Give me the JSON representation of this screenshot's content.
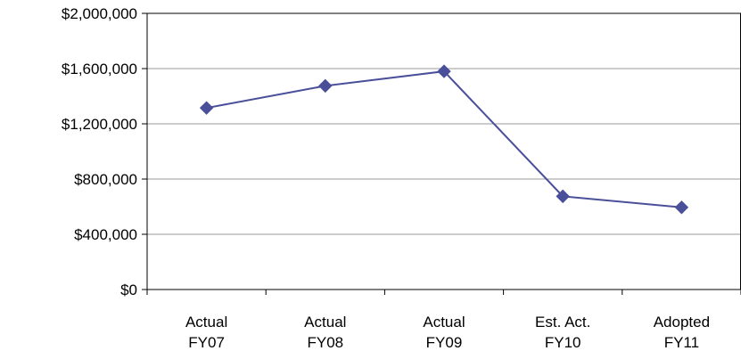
{
  "colors": {
    "series": "#4a4f9a",
    "grid": "#9a9a9a",
    "axis": "#000000",
    "text": "#000000"
  },
  "chart_data": {
    "type": "line",
    "title": "",
    "categories": [
      [
        "Actual",
        "FY07"
      ],
      [
        "Actual",
        "FY08"
      ],
      [
        "Actual",
        "FY09"
      ],
      [
        "Est. Act.",
        "FY10"
      ],
      [
        "Adopted",
        "FY11"
      ]
    ],
    "series": [
      {
        "name": "",
        "values": [
          1315000,
          1475000,
          1580000,
          675000,
          595000
        ],
        "marker": "diamond"
      }
    ],
    "y_ticks": [
      "$0",
      "$400,000",
      "$800,000",
      "$1,200,000",
      "$1,600,000",
      "$2,000,000"
    ],
    "ylim": [
      0,
      2000000
    ],
    "xlabel": "",
    "ylabel": "",
    "grid": true,
    "legend": "none"
  }
}
